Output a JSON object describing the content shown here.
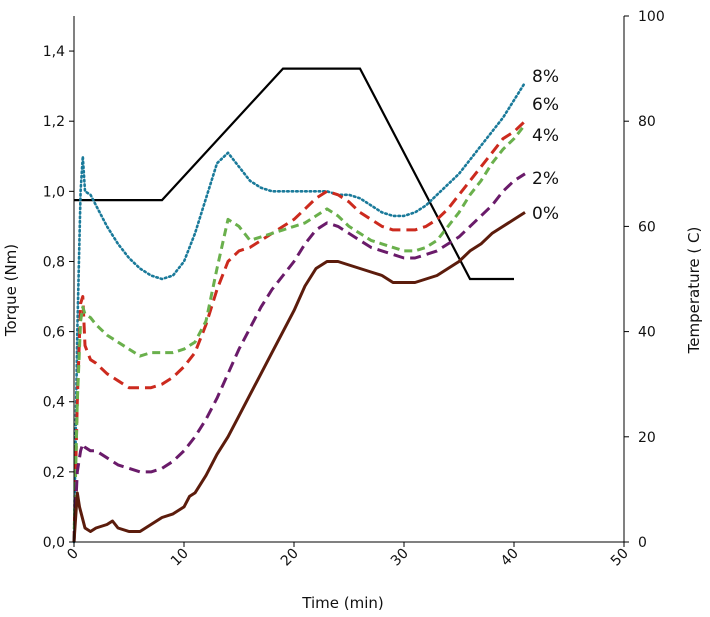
{
  "chart_data": {
    "type": "line",
    "title": "",
    "xlabel": "Time (min)",
    "ylabel": "Torque (Nm)",
    "y2label": "Temperature ( C)",
    "xlim": [
      0,
      50
    ],
    "ylim": [
      0,
      1.5
    ],
    "y2lim": [
      0,
      100
    ],
    "grid": false,
    "legend": "inline labels at right end of curves",
    "x_ticks": [
      "0",
      "10",
      "20",
      "30",
      "40",
      "50"
    ],
    "y_ticks": [
      "0,0",
      "0,2",
      "0,4",
      "0,6",
      "0,8",
      "1,0",
      "1,2",
      "1,4"
    ],
    "y2_ticks": [
      "0",
      "20",
      "40",
      "60",
      "80",
      "100"
    ],
    "temperature": {
      "color": "#000000",
      "x": [
        0,
        8,
        19,
        26,
        36,
        40
      ],
      "y": [
        65,
        65,
        90,
        90,
        50,
        50
      ]
    },
    "series": [
      {
        "name": "8%",
        "color": "#1a7a9a",
        "dash": "dot",
        "x": [
          0,
          0.3,
          0.6,
          0.8,
          1.0,
          1.5,
          2,
          3,
          4,
          5,
          6,
          7,
          8,
          9,
          10,
          11,
          12,
          13,
          14,
          15,
          16,
          17,
          18,
          19,
          20,
          21,
          22,
          23,
          24,
          25,
          26,
          27,
          28,
          29,
          30,
          31,
          32,
          33,
          34,
          35,
          36,
          37,
          38,
          39,
          40,
          41
        ],
        "y": [
          0,
          0.6,
          1.0,
          1.1,
          1.0,
          0.99,
          0.96,
          0.9,
          0.85,
          0.81,
          0.78,
          0.76,
          0.75,
          0.76,
          0.8,
          0.88,
          0.98,
          1.08,
          1.11,
          1.07,
          1.03,
          1.01,
          1.0,
          1.0,
          1.0,
          1.0,
          1.0,
          1.0,
          0.99,
          0.99,
          0.98,
          0.96,
          0.94,
          0.93,
          0.93,
          0.94,
          0.96,
          0.99,
          1.02,
          1.05,
          1.09,
          1.13,
          1.17,
          1.21,
          1.26,
          1.31
        ]
      },
      {
        "name": "6%",
        "color": "#cc2a1e",
        "dash": "long",
        "x": [
          0,
          0.3,
          0.6,
          0.8,
          1.0,
          1.5,
          2,
          3,
          4,
          5,
          6,
          7,
          8,
          9,
          10,
          11,
          12,
          13,
          14,
          15,
          16,
          17,
          18,
          19,
          20,
          21,
          22,
          23,
          24,
          25,
          26,
          27,
          28,
          29,
          30,
          31,
          32,
          33,
          34,
          35,
          36,
          37,
          38,
          39,
          40,
          41
        ],
        "y": [
          0,
          0.4,
          0.68,
          0.7,
          0.56,
          0.52,
          0.51,
          0.48,
          0.46,
          0.44,
          0.44,
          0.44,
          0.45,
          0.47,
          0.5,
          0.54,
          0.62,
          0.72,
          0.8,
          0.83,
          0.84,
          0.86,
          0.88,
          0.9,
          0.92,
          0.95,
          0.98,
          1.0,
          0.99,
          0.97,
          0.94,
          0.92,
          0.9,
          0.89,
          0.89,
          0.89,
          0.9,
          0.92,
          0.95,
          0.99,
          1.03,
          1.07,
          1.11,
          1.15,
          1.17,
          1.2
        ]
      },
      {
        "name": "4%",
        "color": "#6ab04c",
        "dash": "medium",
        "x": [
          0,
          0.3,
          0.6,
          0.8,
          1.0,
          1.5,
          2,
          3,
          4,
          5,
          6,
          7,
          8,
          9,
          10,
          11,
          12,
          13,
          14,
          15,
          16,
          17,
          18,
          19,
          20,
          21,
          22,
          23,
          24,
          25,
          26,
          27,
          28,
          29,
          30,
          31,
          32,
          33,
          34,
          35,
          36,
          37,
          38,
          39,
          40,
          41
        ],
        "y": [
          0,
          0.4,
          0.63,
          0.67,
          0.65,
          0.64,
          0.62,
          0.59,
          0.57,
          0.55,
          0.53,
          0.54,
          0.54,
          0.54,
          0.55,
          0.57,
          0.63,
          0.78,
          0.92,
          0.9,
          0.86,
          0.87,
          0.88,
          0.89,
          0.9,
          0.91,
          0.93,
          0.95,
          0.93,
          0.9,
          0.88,
          0.86,
          0.85,
          0.84,
          0.83,
          0.83,
          0.84,
          0.86,
          0.9,
          0.94,
          0.99,
          1.03,
          1.08,
          1.12,
          1.15,
          1.19
        ]
      },
      {
        "name": "2%",
        "color": "#6a1b6a",
        "dash": "long",
        "x": [
          0,
          0.3,
          0.6,
          0.8,
          1.0,
          1.5,
          2,
          3,
          4,
          5,
          6,
          7,
          8,
          9,
          10,
          11,
          12,
          13,
          14,
          15,
          16,
          17,
          18,
          19,
          20,
          21,
          22,
          23,
          24,
          25,
          26,
          27,
          28,
          29,
          30,
          31,
          32,
          33,
          34,
          35,
          36,
          37,
          38,
          39,
          40,
          41
        ],
        "y": [
          0,
          0.2,
          0.26,
          0.28,
          0.27,
          0.26,
          0.26,
          0.24,
          0.22,
          0.21,
          0.2,
          0.2,
          0.21,
          0.23,
          0.26,
          0.3,
          0.35,
          0.41,
          0.48,
          0.55,
          0.61,
          0.67,
          0.72,
          0.76,
          0.8,
          0.85,
          0.89,
          0.91,
          0.9,
          0.88,
          0.86,
          0.84,
          0.83,
          0.82,
          0.81,
          0.81,
          0.82,
          0.83,
          0.85,
          0.87,
          0.9,
          0.93,
          0.96,
          1.0,
          1.03,
          1.05
        ]
      },
      {
        "name": "0%",
        "color": "#5c1c0c",
        "dash": "solid",
        "x": [
          0,
          0.3,
          0.5,
          1.0,
          1.5,
          2,
          3,
          3.5,
          4,
          5,
          6,
          7,
          8,
          9,
          10,
          10.5,
          11,
          12,
          13,
          14,
          15,
          16,
          17,
          18,
          19,
          20,
          21,
          22,
          23,
          24,
          25,
          26,
          27,
          28,
          29,
          30,
          31,
          32,
          33,
          34,
          35,
          36,
          37,
          38,
          39,
          40,
          41
        ],
        "y": [
          0,
          0.14,
          0.1,
          0.04,
          0.03,
          0.04,
          0.05,
          0.06,
          0.04,
          0.03,
          0.03,
          0.05,
          0.07,
          0.08,
          0.1,
          0.13,
          0.14,
          0.19,
          0.25,
          0.3,
          0.36,
          0.42,
          0.48,
          0.54,
          0.6,
          0.66,
          0.73,
          0.78,
          0.8,
          0.8,
          0.79,
          0.78,
          0.77,
          0.76,
          0.74,
          0.74,
          0.74,
          0.75,
          0.76,
          0.78,
          0.8,
          0.83,
          0.85,
          0.88,
          0.9,
          0.92,
          0.94
        ]
      }
    ]
  }
}
